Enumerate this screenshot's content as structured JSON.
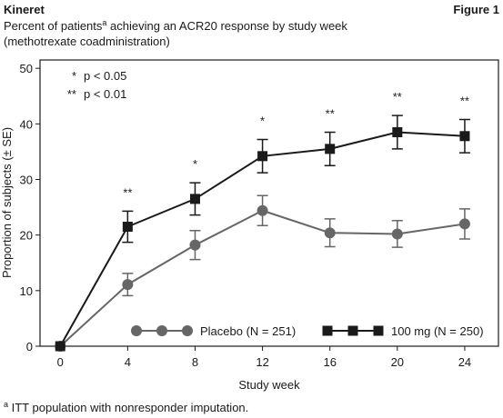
{
  "header": {
    "brand": "Kineret",
    "figure": "Figure 1"
  },
  "chart_data": {
    "type": "line",
    "subtitle": [
      "Percent of patients",
      "a",
      " achieving an ACR20 response by study week"
    ],
    "subtitle_line2": "(methotrexate coadministration)",
    "x_label": "Study week",
    "y_label": "Proportion of subjects (± SE)",
    "x": [
      0,
      4,
      8,
      12,
      16,
      20,
      24
    ],
    "xlim": [
      -1.2,
      26
    ],
    "xticks": [
      0,
      4,
      8,
      12,
      16,
      20,
      24
    ],
    "ylim": [
      0,
      51.5
    ],
    "yticks": [
      0,
      10,
      20,
      30,
      40,
      50
    ],
    "series": [
      {
        "name": "Placebo (N = 251)",
        "color": "#666666",
        "marker": "circle",
        "values": [
          0,
          11.1,
          18.2,
          24.4,
          20.4,
          20.2,
          22.0
        ],
        "errors": [
          0,
          2.0,
          2.6,
          2.7,
          2.5,
          2.4,
          2.7
        ]
      },
      {
        "name": "100 mg (N = 250)",
        "color": "#1a1a1a",
        "marker": "square",
        "values": [
          0,
          21.5,
          26.5,
          34.2,
          35.5,
          38.5,
          37.8
        ],
        "errors": [
          0,
          2.8,
          2.9,
          3.0,
          3.0,
          3.0,
          3.0
        ]
      }
    ],
    "significance": [
      null,
      "**",
      "*",
      "*",
      "**",
      "**",
      "**"
    ],
    "significance_key": [
      {
        "symbol": "*",
        "text": "p < 0.05"
      },
      {
        "symbol": "**",
        "text": "p < 0.01"
      }
    ],
    "footnote": [
      "a",
      " ITT population with nonresponder imputation."
    ]
  }
}
